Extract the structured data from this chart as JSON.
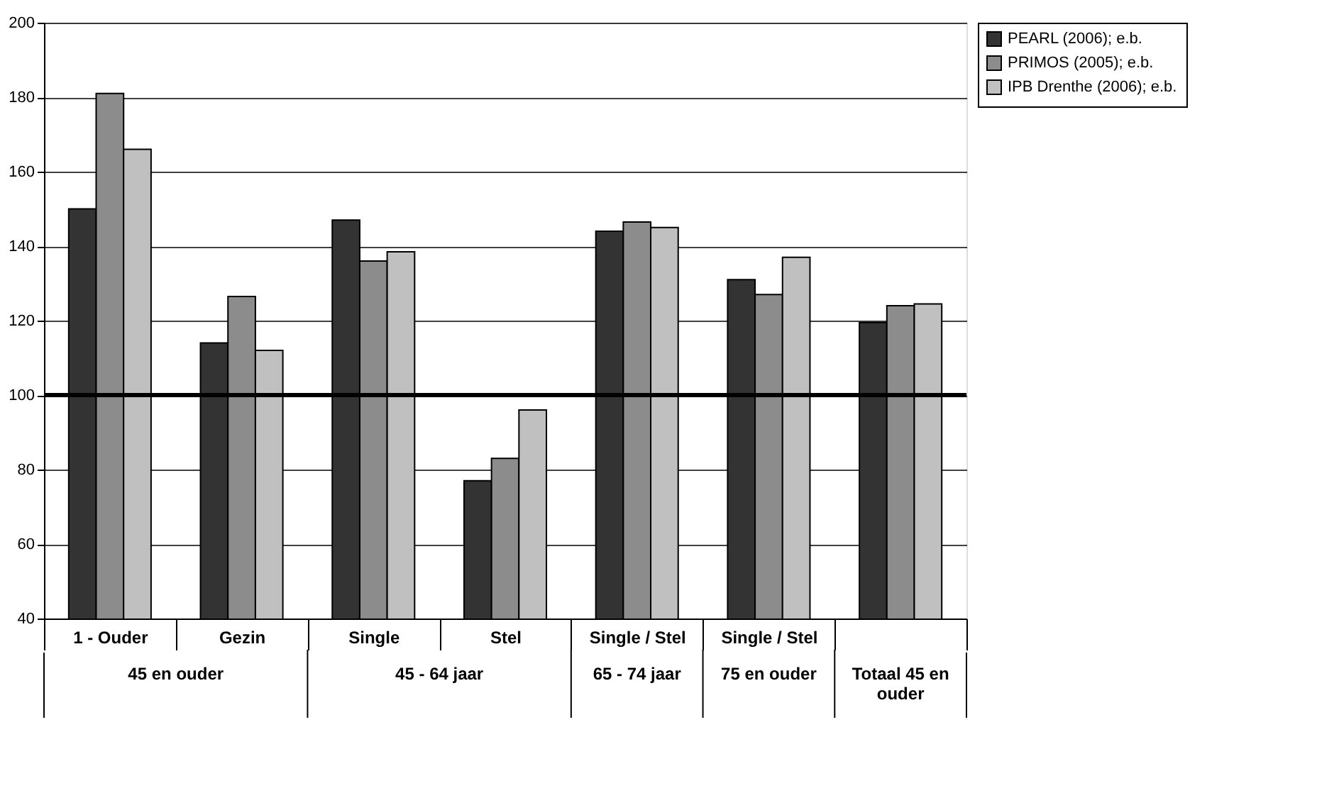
{
  "chart_data": {
    "type": "bar",
    "categories": [
      "1 - Ouder",
      "Gezin",
      "Single",
      "Stel",
      "Single / Stel",
      "Single / Stel",
      null
    ],
    "series": [
      {
        "name": "PEARL (2006); e.b.",
        "color": "#333333",
        "values": [
          150,
          114,
          147,
          77,
          144,
          131,
          119.5
        ]
      },
      {
        "name": "PRIMOS (2005); e.b.",
        "color": "#8c8c8c",
        "values": [
          181,
          126.5,
          136,
          83,
          146.5,
          127,
          124
        ]
      },
      {
        "name": "IPB Drenthe (2006); e.b.",
        "color": "#c0c0c0",
        "values": [
          166,
          112,
          138.5,
          96,
          145,
          137,
          124.5
        ]
      }
    ],
    "ylim": [
      40,
      200
    ],
    "yticks": [
      40,
      60,
      80,
      100,
      120,
      140,
      160,
      180,
      200
    ],
    "grid": "y",
    "legend": "top right",
    "ref_lines": [
      {
        "axis": "y",
        "value": 100,
        "color": "#000000"
      }
    ],
    "annotations": [
      "45 en ouder",
      "45 - 64 jaar",
      "65 - 74 jaar",
      "75 en ouder",
      "Totaal 45 en ouder"
    ]
  }
}
